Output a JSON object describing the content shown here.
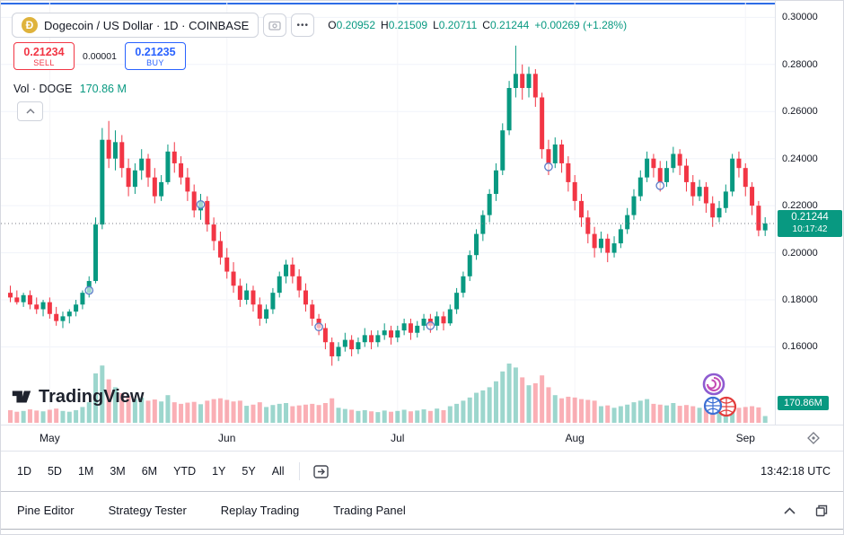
{
  "header": {
    "symbol_title": "Dogecoin / US Dollar · 1D · COINBASE",
    "more_label": "•••",
    "ohlc": {
      "o_label": "O",
      "o": "0.20952",
      "h_label": "H",
      "h": "0.21509",
      "l_label": "L",
      "l": "0.20711",
      "c_label": "C",
      "c": "0.21244",
      "change": "+0.00269 (+1.28%)"
    }
  },
  "trade_buttons": {
    "sell_price": "0.21234",
    "sell_label": "SELL",
    "spread": "0.00001",
    "buy_price": "0.21235",
    "buy_label": "BUY"
  },
  "volume_row": {
    "label": "Vol · DOGE",
    "value": "170.86 M"
  },
  "watermark": "TradingView",
  "price_axis": {
    "labels": [
      "0.30000",
      "0.28000",
      "0.26000",
      "0.24000",
      "0.22000",
      "0.20000",
      "0.18000",
      "0.16000"
    ],
    "current_price": "0.21244",
    "countdown": "10:17:42",
    "volume_badge": "170.86M"
  },
  "toolbar": {
    "ranges": [
      "1D",
      "5D",
      "1M",
      "3M",
      "6M",
      "YTD",
      "1Y",
      "5Y",
      "All"
    ],
    "clock": "13:42:18 UTC"
  },
  "bottom_tabs": [
    "Pine Editor",
    "Strategy Tester",
    "Replay Trading",
    "Trading Panel"
  ],
  "chart_data": {
    "type": "candlestick",
    "title": "Dogecoin / US Dollar, 1D, COINBASE",
    "ylim": [
      0.127,
      0.307
    ],
    "current_price": 0.21244,
    "vol_max": 1500,
    "colors": {
      "up": "#089981",
      "down": "#f23645",
      "grid": "#f0f3fa",
      "current_line": "#787b86",
      "badge_bg": "#089981",
      "buy": "#2962ff",
      "sell": "#f23645",
      "marker": "#5b7cc8"
    },
    "months": [
      {
        "label": "May",
        "i": 6
      },
      {
        "label": "Jun",
        "i": 33
      },
      {
        "label": "Jul",
        "i": 59
      },
      {
        "label": "Aug",
        "i": 86
      },
      {
        "label": "Sep",
        "i": 112
      }
    ],
    "markers": [
      {
        "i": 12,
        "p": 0.184
      },
      {
        "i": 29,
        "p": 0.2205
      },
      {
        "i": 47,
        "p": 0.1685
      },
      {
        "i": 64,
        "p": 0.169
      },
      {
        "i": 82,
        "p": 0.2365
      },
      {
        "i": 99,
        "p": 0.2285
      }
    ],
    "candles": [
      [
        0.183,
        0.186,
        0.179,
        0.181,
        320
      ],
      [
        0.181,
        0.184,
        0.178,
        0.179,
        280
      ],
      [
        0.179,
        0.183,
        0.177,
        0.182,
        300
      ],
      [
        0.182,
        0.184,
        0.176,
        0.178,
        340
      ],
      [
        0.178,
        0.181,
        0.174,
        0.176,
        310
      ],
      [
        0.176,
        0.18,
        0.173,
        0.179,
        290
      ],
      [
        0.179,
        0.181,
        0.172,
        0.174,
        330
      ],
      [
        0.174,
        0.177,
        0.169,
        0.171,
        360
      ],
      [
        0.171,
        0.175,
        0.168,
        0.173,
        300
      ],
      [
        0.173,
        0.176,
        0.17,
        0.175,
        280
      ],
      [
        0.175,
        0.18,
        0.173,
        0.178,
        320
      ],
      [
        0.178,
        0.184,
        0.176,
        0.183,
        400
      ],
      [
        0.183,
        0.19,
        0.181,
        0.188,
        520
      ],
      [
        0.188,
        0.215,
        0.187,
        0.212,
        1250
      ],
      [
        0.212,
        0.253,
        0.21,
        0.248,
        1450
      ],
      [
        0.248,
        0.256,
        0.236,
        0.24,
        1100
      ],
      [
        0.24,
        0.252,
        0.235,
        0.247,
        900
      ],
      [
        0.247,
        0.25,
        0.232,
        0.236,
        750
      ],
      [
        0.236,
        0.24,
        0.224,
        0.228,
        680
      ],
      [
        0.228,
        0.238,
        0.225,
        0.235,
        600
      ],
      [
        0.235,
        0.244,
        0.231,
        0.24,
        640
      ],
      [
        0.24,
        0.242,
        0.228,
        0.232,
        560
      ],
      [
        0.232,
        0.236,
        0.221,
        0.224,
        590
      ],
      [
        0.224,
        0.233,
        0.222,
        0.23,
        540
      ],
      [
        0.23,
        0.246,
        0.229,
        0.243,
        700
      ],
      [
        0.243,
        0.247,
        0.234,
        0.238,
        520
      ],
      [
        0.238,
        0.241,
        0.229,
        0.232,
        480
      ],
      [
        0.232,
        0.236,
        0.222,
        0.226,
        510
      ],
      [
        0.226,
        0.229,
        0.215,
        0.218,
        530
      ],
      [
        0.218,
        0.225,
        0.214,
        0.222,
        470
      ],
      [
        0.222,
        0.224,
        0.209,
        0.212,
        560
      ],
      [
        0.212,
        0.215,
        0.201,
        0.205,
        600
      ],
      [
        0.205,
        0.209,
        0.195,
        0.198,
        620
      ],
      [
        0.198,
        0.202,
        0.189,
        0.192,
        580
      ],
      [
        0.192,
        0.196,
        0.183,
        0.186,
        540
      ],
      [
        0.186,
        0.189,
        0.177,
        0.18,
        560
      ],
      [
        0.18,
        0.187,
        0.178,
        0.184,
        430
      ],
      [
        0.184,
        0.186,
        0.175,
        0.178,
        460
      ],
      [
        0.178,
        0.181,
        0.169,
        0.172,
        520
      ],
      [
        0.172,
        0.178,
        0.17,
        0.176,
        400
      ],
      [
        0.176,
        0.185,
        0.174,
        0.183,
        450
      ],
      [
        0.183,
        0.192,
        0.181,
        0.19,
        480
      ],
      [
        0.19,
        0.197,
        0.187,
        0.195,
        500
      ],
      [
        0.195,
        0.198,
        0.187,
        0.19,
        420
      ],
      [
        0.19,
        0.193,
        0.181,
        0.184,
        440
      ],
      [
        0.184,
        0.187,
        0.175,
        0.178,
        460
      ],
      [
        0.178,
        0.18,
        0.169,
        0.172,
        480
      ],
      [
        0.172,
        0.174,
        0.165,
        0.168,
        450
      ],
      [
        0.168,
        0.17,
        0.159,
        0.162,
        500
      ],
      [
        0.162,
        0.164,
        0.152,
        0.156,
        620
      ],
      [
        0.156,
        0.162,
        0.154,
        0.16,
        380
      ],
      [
        0.16,
        0.166,
        0.158,
        0.163,
        350
      ],
      [
        0.163,
        0.165,
        0.156,
        0.159,
        330
      ],
      [
        0.159,
        0.164,
        0.157,
        0.162,
        300
      ],
      [
        0.162,
        0.168,
        0.16,
        0.165,
        320
      ],
      [
        0.165,
        0.167,
        0.159,
        0.162,
        290
      ],
      [
        0.162,
        0.167,
        0.16,
        0.165,
        270
      ],
      [
        0.165,
        0.17,
        0.163,
        0.167,
        310
      ],
      [
        0.167,
        0.169,
        0.161,
        0.164,
        280
      ],
      [
        0.164,
        0.169,
        0.162,
        0.167,
        300
      ],
      [
        0.167,
        0.172,
        0.165,
        0.17,
        330
      ],
      [
        0.17,
        0.172,
        0.163,
        0.166,
        290
      ],
      [
        0.166,
        0.171,
        0.164,
        0.169,
        310
      ],
      [
        0.169,
        0.174,
        0.167,
        0.172,
        340
      ],
      [
        0.172,
        0.174,
        0.166,
        0.169,
        300
      ],
      [
        0.169,
        0.175,
        0.167,
        0.173,
        360
      ],
      [
        0.173,
        0.175,
        0.167,
        0.17,
        320
      ],
      [
        0.17,
        0.178,
        0.169,
        0.176,
        420
      ],
      [
        0.176,
        0.185,
        0.174,
        0.183,
        480
      ],
      [
        0.183,
        0.192,
        0.181,
        0.19,
        560
      ],
      [
        0.19,
        0.201,
        0.188,
        0.199,
        640
      ],
      [
        0.199,
        0.21,
        0.197,
        0.208,
        760
      ],
      [
        0.208,
        0.218,
        0.205,
        0.216,
        820
      ],
      [
        0.216,
        0.227,
        0.213,
        0.225,
        900
      ],
      [
        0.225,
        0.238,
        0.222,
        0.235,
        1050
      ],
      [
        0.235,
        0.255,
        0.233,
        0.252,
        1300
      ],
      [
        0.252,
        0.273,
        0.25,
        0.27,
        1500
      ],
      [
        0.27,
        0.288,
        0.266,
        0.276,
        1400
      ],
      [
        0.276,
        0.28,
        0.265,
        0.27,
        1150
      ],
      [
        0.27,
        0.279,
        0.266,
        0.276,
        950
      ],
      [
        0.276,
        0.278,
        0.262,
        0.266,
        1000
      ],
      [
        0.266,
        0.268,
        0.24,
        0.244,
        1200
      ],
      [
        0.244,
        0.248,
        0.233,
        0.238,
        900
      ],
      [
        0.238,
        0.249,
        0.236,
        0.246,
        700
      ],
      [
        0.246,
        0.248,
        0.234,
        0.238,
        620
      ],
      [
        0.238,
        0.241,
        0.226,
        0.23,
        660
      ],
      [
        0.23,
        0.233,
        0.218,
        0.222,
        640
      ],
      [
        0.222,
        0.225,
        0.211,
        0.215,
        600
      ],
      [
        0.215,
        0.218,
        0.204,
        0.208,
        580
      ],
      [
        0.208,
        0.211,
        0.198,
        0.202,
        560
      ],
      [
        0.202,
        0.209,
        0.2,
        0.206,
        420
      ],
      [
        0.206,
        0.208,
        0.196,
        0.2,
        440
      ],
      [
        0.2,
        0.207,
        0.198,
        0.204,
        380
      ],
      [
        0.204,
        0.212,
        0.202,
        0.21,
        420
      ],
      [
        0.21,
        0.219,
        0.208,
        0.216,
        460
      ],
      [
        0.216,
        0.227,
        0.214,
        0.224,
        520
      ],
      [
        0.224,
        0.235,
        0.222,
        0.232,
        560
      ],
      [
        0.232,
        0.243,
        0.23,
        0.24,
        600
      ],
      [
        0.24,
        0.242,
        0.232,
        0.236,
        480
      ],
      [
        0.236,
        0.239,
        0.226,
        0.23,
        460
      ],
      [
        0.23,
        0.239,
        0.228,
        0.236,
        440
      ],
      [
        0.236,
        0.245,
        0.234,
        0.242,
        500
      ],
      [
        0.242,
        0.244,
        0.233,
        0.237,
        430
      ],
      [
        0.237,
        0.24,
        0.226,
        0.23,
        450
      ],
      [
        0.23,
        0.233,
        0.22,
        0.224,
        420
      ],
      [
        0.224,
        0.231,
        0.222,
        0.228,
        380
      ],
      [
        0.228,
        0.23,
        0.217,
        0.221,
        400
      ],
      [
        0.221,
        0.224,
        0.211,
        0.215,
        430
      ],
      [
        0.215,
        0.222,
        0.213,
        0.219,
        360
      ],
      [
        0.219,
        0.229,
        0.217,
        0.226,
        420
      ],
      [
        0.226,
        0.242,
        0.224,
        0.24,
        550
      ],
      [
        0.24,
        0.243,
        0.232,
        0.236,
        380
      ],
      [
        0.236,
        0.238,
        0.224,
        0.228,
        400
      ],
      [
        0.228,
        0.23,
        0.216,
        0.22,
        420
      ],
      [
        0.22,
        0.222,
        0.207,
        0.2095,
        390
      ],
      [
        0.20952,
        0.21509,
        0.20711,
        0.21244,
        171
      ]
    ]
  }
}
